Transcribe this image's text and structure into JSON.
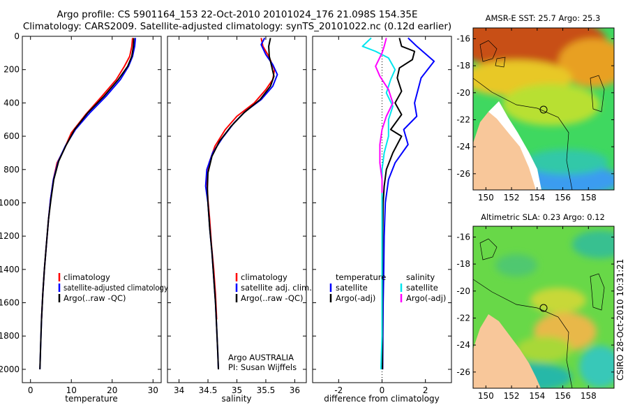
{
  "header": {
    "line1": "Argo profile: CS 5901164_153 22-Oct-2010 20101024_176 21.098S 154.35E",
    "line2": "Climatology: CARS2009. Satellite-adjusted climatology: synTS_20101022.nc (0.12d earlier)"
  },
  "credit": "CSIRO 28-Oct-2010 10:31:21",
  "annotation": {
    "line1": "Argo AUSTRALIA",
    "line2": "PI: Susan Wijffels"
  },
  "colors": {
    "red": "#ff0000",
    "blue": "#0000ff",
    "black": "#000000",
    "cyan": "#00e5ee",
    "magenta": "#ff00ff",
    "land": "#f8c79a"
  },
  "chart_data": [
    {
      "id": "temperature",
      "type": "line",
      "xlabel": "temperature",
      "ylabel": "",
      "xlim": [
        -2,
        32
      ],
      "ylim": [
        2080,
        0
      ],
      "y_reversed": true,
      "xticks": [
        0,
        10,
        20,
        30
      ],
      "yticks": [
        0,
        200,
        400,
        600,
        800,
        1000,
        1200,
        1400,
        1600,
        1800,
        2000
      ],
      "legend": [
        "climatology",
        "satellite-adjusted climatology",
        "Argo(..raw -QC)"
      ],
      "series": [
        {
          "name": "climatology",
          "color": "#ff0000",
          "points": [
            [
              25.0,
              10
            ],
            [
              24.8,
              60
            ],
            [
              24.3,
              120
            ],
            [
              23.0,
              180
            ],
            [
              21.0,
              260
            ],
            [
              17.5,
              360
            ],
            [
              13.5,
              470
            ],
            [
              10.0,
              580
            ],
            [
              8.2,
              680
            ],
            [
              6.5,
              760
            ],
            [
              5.6,
              860
            ],
            [
              4.9,
              980
            ],
            [
              4.4,
              1100
            ],
            [
              3.9,
              1250
            ],
            [
              3.4,
              1400
            ],
            [
              3.0,
              1550
            ],
            [
              2.7,
              1700
            ]
          ]
        },
        {
          "name": "satellite-adjusted climatology",
          "color": "#0000ff",
          "points": [
            [
              25.7,
              10
            ],
            [
              25.5,
              60
            ],
            [
              25.0,
              120
            ],
            [
              24.0,
              180
            ],
            [
              22.0,
              260
            ],
            [
              18.5,
              360
            ],
            [
              14.5,
              460
            ],
            [
              11.0,
              560
            ],
            [
              8.5,
              660
            ],
            [
              6.8,
              750
            ],
            [
              5.6,
              860
            ],
            [
              4.9,
              980
            ],
            [
              4.4,
              1100
            ],
            [
              3.9,
              1250
            ],
            [
              3.4,
              1400
            ],
            [
              3.0,
              1550
            ],
            [
              2.7,
              1700
            ],
            [
              2.5,
              1850
            ],
            [
              2.3,
              2000
            ]
          ]
        },
        {
          "name": "Argo(..raw -QC)",
          "color": "#000000",
          "points": [
            [
              25.3,
              10
            ],
            [
              25.2,
              60
            ],
            [
              24.8,
              120
            ],
            [
              23.8,
              180
            ],
            [
              21.5,
              260
            ],
            [
              18.0,
              360
            ],
            [
              14.0,
              460
            ],
            [
              10.8,
              560
            ],
            [
              8.6,
              660
            ],
            [
              6.9,
              750
            ],
            [
              5.7,
              860
            ],
            [
              5.0,
              980
            ],
            [
              4.4,
              1100
            ],
            [
              3.9,
              1250
            ],
            [
              3.4,
              1400
            ],
            [
              3.0,
              1550
            ],
            [
              2.7,
              1700
            ],
            [
              2.5,
              1850
            ],
            [
              2.3,
              2000
            ]
          ]
        }
      ]
    },
    {
      "id": "salinity",
      "type": "line",
      "xlabel": "salinity",
      "ylabel": "",
      "xlim": [
        33.8,
        36.2
      ],
      "ylim": [
        2080,
        0
      ],
      "y_reversed": true,
      "xticks": [
        34,
        34.5,
        35,
        35.5,
        36
      ],
      "legend": [
        "climatology",
        "satellite adj. clim.",
        "Argo(..raw -QC)"
      ],
      "series": [
        {
          "name": "climatology",
          "color": "#ff0000",
          "points": [
            [
              35.42,
              10
            ],
            [
              35.45,
              60
            ],
            [
              35.55,
              120
            ],
            [
              35.65,
              200
            ],
            [
              35.62,
              260
            ],
            [
              35.5,
              320
            ],
            [
              35.3,
              400
            ],
            [
              35.0,
              480
            ],
            [
              34.8,
              560
            ],
            [
              34.62,
              660
            ],
            [
              34.52,
              760
            ],
            [
              34.48,
              860
            ],
            [
              34.5,
              980
            ],
            [
              34.53,
              1100
            ],
            [
              34.56,
              1250
            ],
            [
              34.6,
              1400
            ],
            [
              34.63,
              1550
            ],
            [
              34.65,
              1700
            ]
          ]
        },
        {
          "name": "satellite adj. clim.",
          "color": "#0000ff",
          "points": [
            [
              35.48,
              10
            ],
            [
              35.42,
              50
            ],
            [
              35.5,
              110
            ],
            [
              35.62,
              170
            ],
            [
              35.7,
              230
            ],
            [
              35.62,
              300
            ],
            [
              35.42,
              380
            ],
            [
              35.15,
              450
            ],
            [
              34.95,
              520
            ],
            [
              34.75,
              610
            ],
            [
              34.58,
              700
            ],
            [
              34.48,
              800
            ],
            [
              34.46,
              900
            ],
            [
              34.5,
              1000
            ],
            [
              34.53,
              1150
            ],
            [
              34.57,
              1300
            ],
            [
              34.6,
              1450
            ],
            [
              34.63,
              1600
            ],
            [
              34.65,
              1750
            ],
            [
              34.67,
              1900
            ],
            [
              34.68,
              2000
            ]
          ]
        },
        {
          "name": "Argo(..raw -QC)",
          "color": "#000000",
          "points": [
            [
              35.58,
              10
            ],
            [
              35.55,
              60
            ],
            [
              35.56,
              120
            ],
            [
              35.6,
              180
            ],
            [
              35.64,
              240
            ],
            [
              35.58,
              300
            ],
            [
              35.4,
              380
            ],
            [
              35.12,
              460
            ],
            [
              34.9,
              540
            ],
            [
              34.7,
              630
            ],
            [
              34.57,
              720
            ],
            [
              34.5,
              820
            ],
            [
              34.49,
              920
            ],
            [
              34.5,
              1000
            ],
            [
              34.53,
              1150
            ],
            [
              34.57,
              1300
            ],
            [
              34.6,
              1450
            ],
            [
              34.63,
              1600
            ],
            [
              34.65,
              1750
            ],
            [
              34.67,
              1900
            ],
            [
              34.68,
              2000
            ]
          ]
        }
      ]
    },
    {
      "id": "difference",
      "type": "line",
      "xlabel": "difference from climatology",
      "ylabel": "",
      "xlim": [
        -3.2,
        3.2
      ],
      "ylim": [
        2080,
        0
      ],
      "y_reversed": true,
      "xticks": [
        -2,
        0,
        2
      ],
      "legend_left_title": "temperature",
      "legend_right_title": "salinity",
      "legend_left": [
        "satellite",
        "Argo(-adj)"
      ],
      "legend_right": [
        "satellite",
        "Argo(-adj)"
      ],
      "series": [
        {
          "name": "temperature satellite",
          "color": "#0000ff",
          "points": [
            [
              1.2,
              10
            ],
            [
              1.6,
              60
            ],
            [
              2.4,
              150
            ],
            [
              1.8,
              250
            ],
            [
              1.5,
              400
            ],
            [
              1.6,
              480
            ],
            [
              1.0,
              560
            ],
            [
              1.2,
              650
            ],
            [
              0.6,
              760
            ],
            [
              0.3,
              860
            ],
            [
              0.15,
              1000
            ],
            [
              0.1,
              1200
            ],
            [
              0.08,
              1400
            ],
            [
              0.05,
              1600
            ],
            [
              0.04,
              1800
            ],
            [
              0.03,
              2000
            ]
          ]
        },
        {
          "name": "temperature Argo(-adj)",
          "color": "#000000",
          "points": [
            [
              0.8,
              10
            ],
            [
              0.9,
              60
            ],
            [
              1.5,
              90
            ],
            [
              1.4,
              140
            ],
            [
              0.8,
              190
            ],
            [
              0.7,
              250
            ],
            [
              0.9,
              330
            ],
            [
              0.6,
              400
            ],
            [
              0.9,
              470
            ],
            [
              0.4,
              560
            ],
            [
              0.9,
              600
            ],
            [
              0.5,
              700
            ],
            [
              0.2,
              800
            ],
            [
              0.1,
              900
            ],
            [
              0.05,
              1000
            ],
            [
              0.03,
              1200
            ],
            [
              0.02,
              1400
            ],
            [
              0.02,
              1600
            ],
            [
              0.02,
              1800
            ],
            [
              0.02,
              2000
            ]
          ]
        },
        {
          "name": "salinity satellite",
          "color": "#00e5ee",
          "points": [
            [
              -0.5,
              10
            ],
            [
              -0.9,
              60
            ],
            [
              -0.3,
              90
            ],
            [
              0.3,
              130
            ],
            [
              0.6,
              200
            ],
            [
              0.4,
              260
            ],
            [
              0.2,
              340
            ],
            [
              0.5,
              420
            ],
            [
              0.3,
              500
            ],
            [
              0.3,
              600
            ],
            [
              0.1,
              700
            ],
            [
              0.0,
              800
            ],
            [
              0.0,
              900
            ],
            [
              0.0,
              1000
            ],
            [
              0.0,
              1200
            ],
            [
              0.0,
              1400
            ],
            [
              0.0,
              1600
            ],
            [
              0.0,
              1800
            ],
            [
              -0.05,
              2000
            ]
          ]
        },
        {
          "name": "salinity Argo(-adj)",
          "color": "#ff00ff",
          "points": [
            [
              0.2,
              10
            ],
            [
              0.1,
              60
            ],
            [
              0.0,
              100
            ],
            [
              -0.3,
              180
            ],
            [
              -0.1,
              240
            ],
            [
              0.3,
              320
            ],
            [
              0.5,
              400
            ],
            [
              0.2,
              480
            ],
            [
              0.0,
              560
            ],
            [
              -0.1,
              650
            ],
            [
              -0.1,
              760
            ],
            [
              0.0,
              860
            ],
            [
              0.0,
              940
            ]
          ]
        }
      ]
    },
    {
      "id": "sst_map",
      "type": "heatmap",
      "title": "AMSR-E SST: 25.7 Argo: 25.3",
      "xticks": [
        "150",
        "152",
        "154",
        "156",
        "158"
      ],
      "yticks": [
        "-16",
        "-18",
        "-20",
        "-22",
        "-24",
        "-26"
      ],
      "xlim": [
        149,
        160
      ],
      "ylim": [
        -27.2,
        -15.2
      ],
      "profile_location": [
        154.35,
        -21.098
      ]
    },
    {
      "id": "sla_map",
      "type": "heatmap",
      "title": "Altimetric SLA: 0.23 Argo: 0.12",
      "xticks": [
        "150",
        "152",
        "154",
        "156",
        "158"
      ],
      "yticks": [
        "-16",
        "-18",
        "-20",
        "-22",
        "-24",
        "-26"
      ],
      "xlim": [
        149,
        160
      ],
      "ylim": [
        -27.2,
        -15.2
      ],
      "profile_location": [
        154.35,
        -21.098
      ]
    }
  ]
}
